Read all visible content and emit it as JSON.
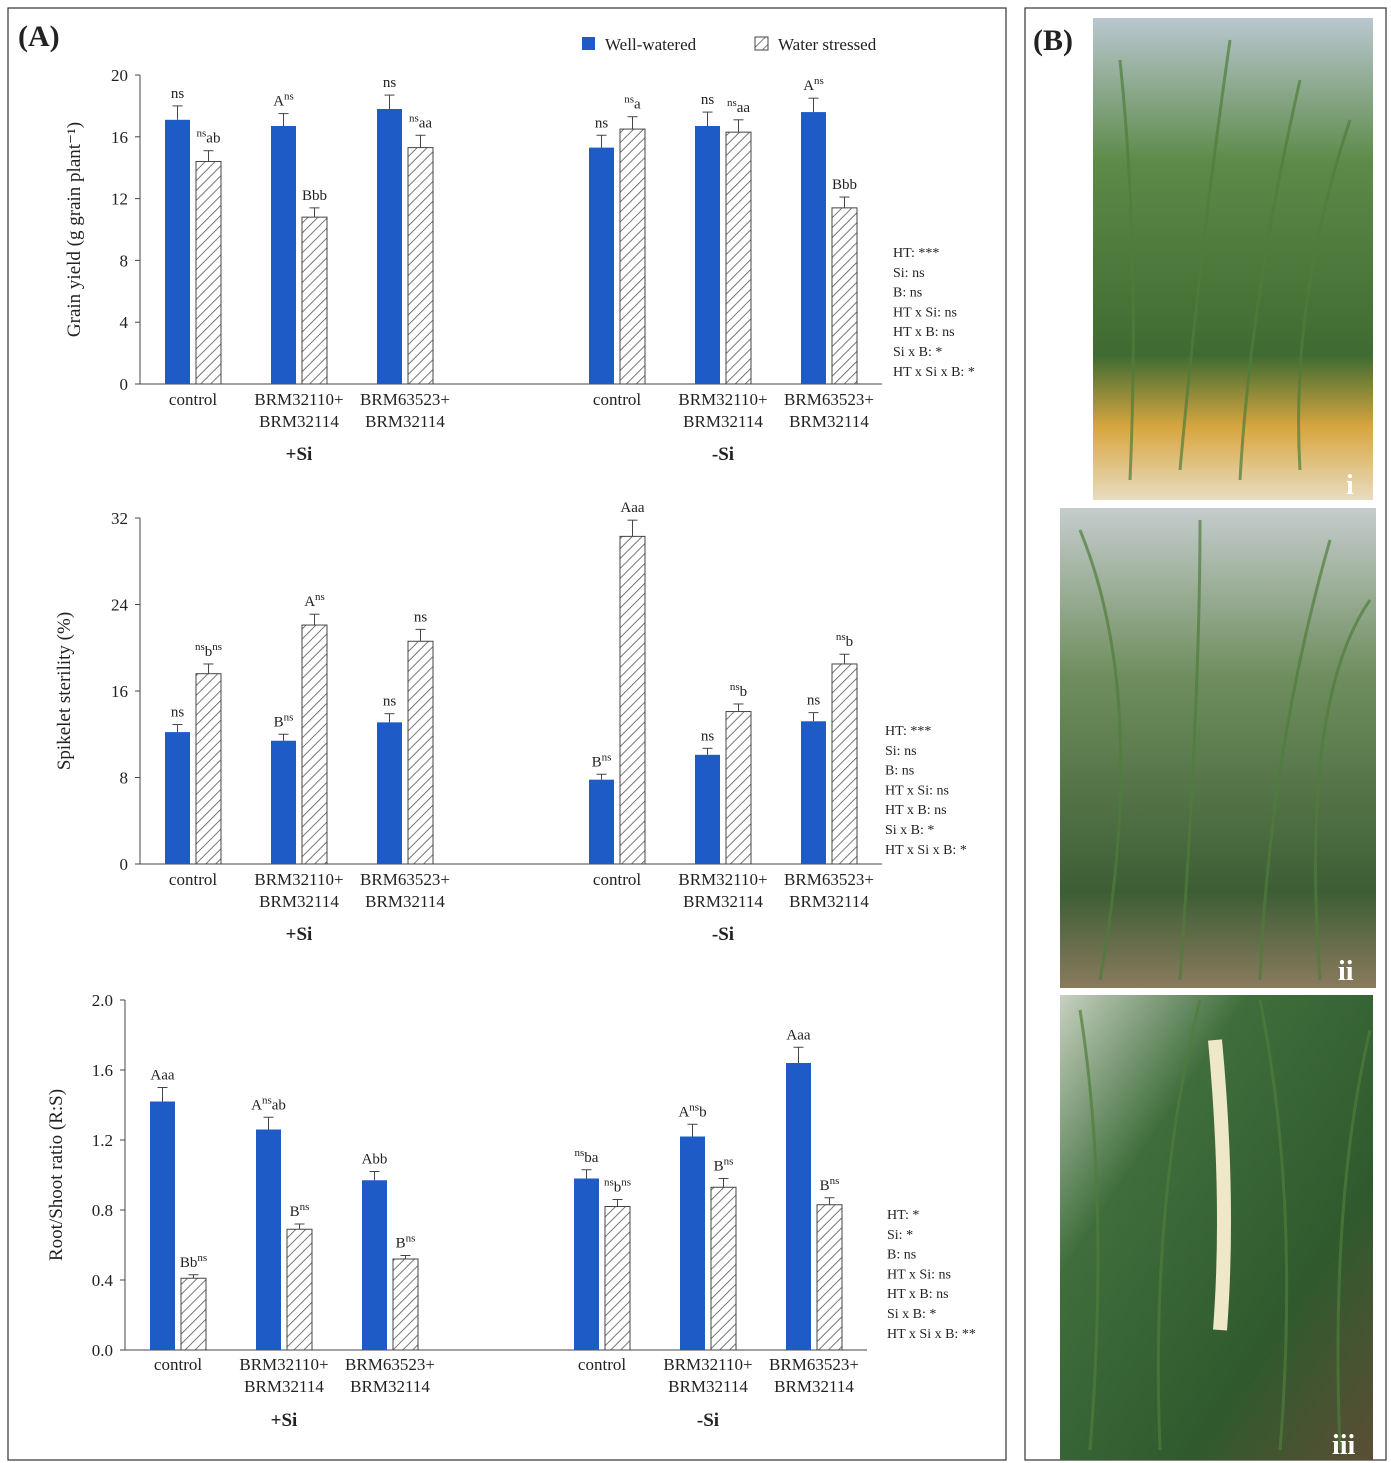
{
  "panel_labels": [
    "(A)",
    "(B)"
  ],
  "photo_labels": [
    "i",
    "ii",
    "iii"
  ],
  "chart_data": [
    {
      "type": "bar",
      "ylabel": "Grain yield (g grain plant⁻¹)",
      "categories": [
        "control",
        "BRM32110+\nBRM32114",
        "BRM63523+\nBRM32114",
        "control",
        "BRM32110+\nBRM32114",
        "BRM63523+\nBRM32114"
      ],
      "groups": [
        "+Si",
        "-Si"
      ],
      "ylim": [
        0,
        20
      ],
      "yticks": [
        0,
        4,
        8,
        12,
        16,
        20
      ],
      "legend": "top",
      "series": [
        {
          "name": "Well-watered",
          "color": "#1f5bc6",
          "values": [
            17.1,
            16.7,
            17.8,
            15.3,
            16.7,
            17.6
          ],
          "error": [
            0.9,
            0.8,
            0.9,
            0.8,
            0.9,
            0.9
          ],
          "annotations": [
            [
              {
                "text": "ns"
              }
            ],
            [
              {
                "text": "A"
              },
              {
                "sup": "ns"
              }
            ],
            [
              {
                "text": "ns"
              }
            ],
            [
              {
                "text": "ns"
              }
            ],
            [
              {
                "text": "ns"
              }
            ],
            [
              {
                "text": "A"
              },
              {
                "sup": "ns"
              }
            ]
          ]
        },
        {
          "name": "Water stressed",
          "color": "#ffffff",
          "hatch": true,
          "values": [
            14.4,
            10.8,
            15.3,
            16.5,
            16.3,
            11.4
          ],
          "error": [
            0.7,
            0.6,
            0.8,
            0.8,
            0.8,
            0.7
          ],
          "annotations": [
            [
              {
                "sup": "ns"
              },
              {
                "text": "ab"
              }
            ],
            [
              {
                "text": "Bbb"
              }
            ],
            [
              {
                "sup": "ns"
              },
              {
                "text": "aa"
              }
            ],
            [
              {
                "sup": "ns"
              },
              {
                "text": "a"
              }
            ],
            [
              {
                "sup": "ns"
              },
              {
                "text": "aa"
              }
            ],
            [
              {
                "text": "Bbb"
              }
            ]
          ]
        }
      ],
      "stats": [
        "HT: ***",
        "Si: ns",
        "B: ns",
        "HT x Si: ns",
        "HT x B: ns",
        "Si x B: *",
        "HT x Si x B: *"
      ]
    },
    {
      "type": "bar",
      "ylabel": "Spikelet sterility (%)",
      "categories": [
        "control",
        "BRM32110+\nBRM32114",
        "BRM63523+\nBRM32114",
        "control",
        "BRM32110+\nBRM32114",
        "BRM63523+\nBRM32114"
      ],
      "groups": [
        "+Si",
        "-Si"
      ],
      "ylim": [
        0,
        32
      ],
      "yticks": [
        0,
        8,
        16,
        24,
        32
      ],
      "series": [
        {
          "color": "#1f5bc6",
          "values": [
            12.2,
            11.4,
            13.1,
            7.8,
            10.1,
            13.2
          ],
          "error": [
            0.7,
            0.6,
            0.8,
            0.5,
            0.6,
            0.8
          ],
          "annotations": [
            [
              {
                "text": "ns"
              }
            ],
            [
              {
                "text": "B"
              },
              {
                "sup": "ns"
              }
            ],
            [
              {
                "text": "ns"
              }
            ],
            [
              {
                "text": "B"
              },
              {
                "sup": "ns"
              }
            ],
            [
              {
                "text": "ns"
              }
            ],
            [
              {
                "text": "ns"
              }
            ]
          ]
        },
        {
          "color": "#ffffff",
          "hatch": true,
          "values": [
            17.6,
            22.1,
            20.6,
            30.3,
            14.1,
            18.5
          ],
          "error": [
            0.9,
            1.0,
            1.1,
            1.5,
            0.7,
            0.9
          ],
          "annotations": [
            [
              {
                "sup": "ns"
              },
              {
                "text": "b"
              },
              {
                "sup": "ns"
              }
            ],
            [
              {
                "text": "A"
              },
              {
                "sup": "ns"
              }
            ],
            [
              {
                "text": "ns"
              }
            ],
            [
              {
                "text": "Aaa"
              }
            ],
            [
              {
                "sup": "ns"
              },
              {
                "text": "b"
              }
            ],
            [
              {
                "sup": "ns"
              },
              {
                "text": "b"
              }
            ]
          ]
        }
      ],
      "stats": [
        "HT: ***",
        "Si: ns",
        "B: ns",
        "HT x Si: ns",
        "HT x B: ns",
        "Si x B: *",
        "HT x Si x B: *"
      ]
    },
    {
      "type": "bar",
      "ylabel": "Root/Shoot ratio (R:S)",
      "categories": [
        "control",
        "BRM32110+\nBRM32114",
        "BRM63523+\nBRM32114",
        "control",
        "BRM32110+\nBRM32114",
        "BRM63523+\nBRM32114"
      ],
      "groups": [
        "+Si",
        "-Si"
      ],
      "ylim": [
        0,
        2
      ],
      "yticks": [
        {
          "value": 0,
          "label": "0.0"
        },
        {
          "value": 0.4,
          "label": "0.4"
        },
        {
          "value": 0.8,
          "label": "0.8"
        },
        {
          "value": 1.2,
          "label": "1.2"
        },
        {
          "value": 1.6,
          "label": "1.6"
        },
        {
          "value": 2,
          "label": "2.0"
        }
      ],
      "series": [
        {
          "color": "#1f5bc6",
          "values": [
            1.42,
            1.26,
            0.97,
            0.98,
            1.22,
            1.64
          ],
          "error": [
            0.08,
            0.07,
            0.05,
            0.05,
            0.07,
            0.09
          ],
          "annotations": [
            [
              {
                "text": "Aaa"
              }
            ],
            [
              {
                "text": "A"
              },
              {
                "sup": "ns"
              },
              {
                "text": "ab"
              }
            ],
            [
              {
                "text": "Abb"
              }
            ],
            [
              {
                "sup": "ns"
              },
              {
                "text": "ba"
              }
            ],
            [
              {
                "text": "A"
              },
              {
                "sup": "ns"
              },
              {
                "text": "b"
              }
            ],
            [
              {
                "text": "Aaa"
              }
            ]
          ]
        },
        {
          "color": "#ffffff",
          "hatch": true,
          "values": [
            0.41,
            0.69,
            0.52,
            0.82,
            0.93,
            0.83
          ],
          "error": [
            0.02,
            0.03,
            0.02,
            0.04,
            0.05,
            0.04
          ],
          "annotations": [
            [
              {
                "text": "Bb"
              },
              {
                "sup": "ns"
              }
            ],
            [
              {
                "text": "B"
              },
              {
                "sup": "ns"
              }
            ],
            [
              {
                "text": "B"
              },
              {
                "sup": "ns"
              }
            ],
            [
              {
                "sup": "ns"
              },
              {
                "text": "b"
              },
              {
                "sup": "ns"
              }
            ],
            [
              {
                "text": "B"
              },
              {
                "sup": "ns"
              }
            ],
            [
              {
                "text": "B"
              },
              {
                "sup": "ns"
              }
            ]
          ]
        }
      ],
      "stats": [
        "HT: *",
        "Si: *",
        "B: ns",
        "HT x Si: ns",
        "HT x B: ns",
        "Si x B: *",
        "HT x Si x B: **"
      ]
    }
  ]
}
